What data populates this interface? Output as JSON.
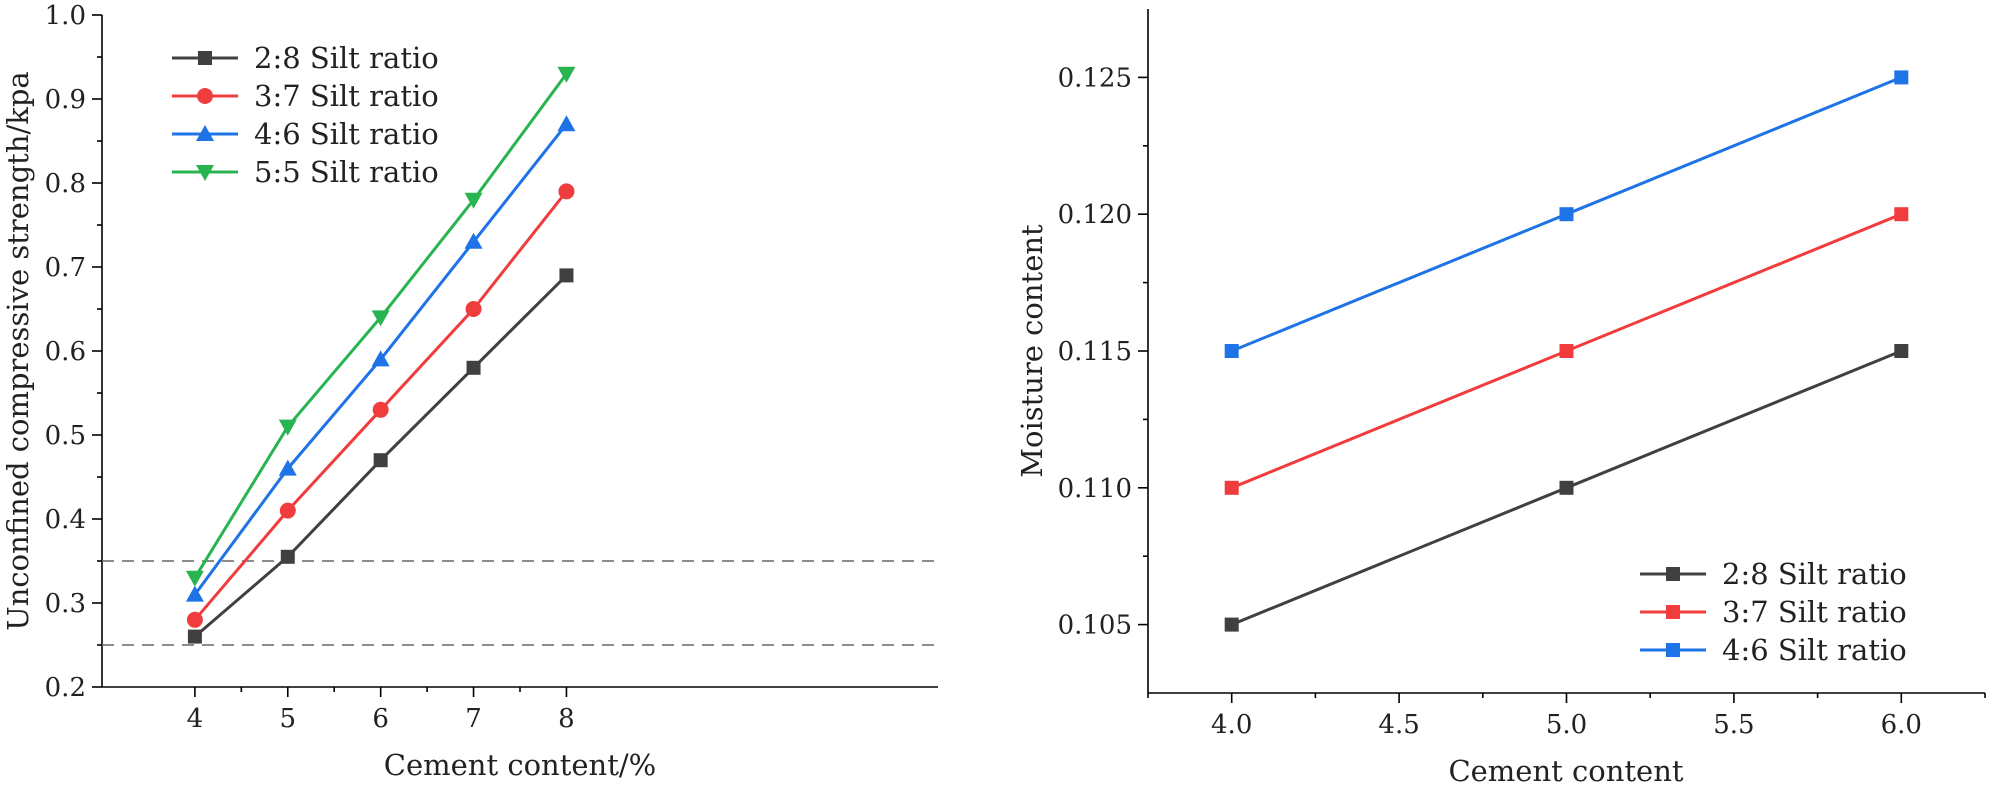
{
  "chart_data": [
    {
      "type": "line",
      "x": [
        4,
        5,
        6,
        7,
        8
      ],
      "xlim": [
        3,
        12
      ],
      "ylim": [
        0.2,
        1.0
      ],
      "xticks": [
        "4",
        "5",
        "6",
        "7",
        "8"
      ],
      "yticks": [
        "0.2",
        "0.3",
        "0.4",
        "0.5",
        "0.6",
        "0.7",
        "0.8",
        "0.9",
        "1.0"
      ],
      "xlabel": "Cement content/%",
      "ylabel": "Unconfined compressive strength/kpa",
      "reference_lines": [
        0.35,
        0.25
      ],
      "legend_position": "top-left",
      "series": [
        {
          "name": "2:8 Silt ratio",
          "values": [
            0.26,
            0.355,
            0.47,
            0.58,
            0.69
          ],
          "color": "#404040",
          "marker": "square"
        },
        {
          "name": "3:7 Silt ratio",
          "values": [
            0.28,
            0.41,
            0.53,
            0.65,
            0.79
          ],
          "color": "#f03c3c",
          "marker": "circle"
        },
        {
          "name": "4:6 Silt ratio",
          "values": [
            0.31,
            0.46,
            0.59,
            0.73,
            0.87
          ],
          "color": "#1e73e6",
          "marker": "triangle-up"
        },
        {
          "name": "5:5 Silt ratio",
          "values": [
            0.33,
            0.51,
            0.64,
            0.78,
            0.93
          ],
          "color": "#28b450",
          "marker": "triangle-down"
        }
      ]
    },
    {
      "type": "line",
      "x": [
        4.0,
        5.0,
        6.0
      ],
      "xlim": [
        3.75,
        6.25
      ],
      "ylim": [
        0.1025,
        0.1275
      ],
      "xticks": [
        "4.0",
        "4.5",
        "5.0",
        "5.5",
        "6.0"
      ],
      "yticks": [
        "0.105",
        "0.110",
        "0.115",
        "0.120",
        "0.125"
      ],
      "xlabel": "Cement content",
      "ylabel": "Moisture content",
      "legend_position": "bottom-right",
      "series": [
        {
          "name": "2:8 Silt ratio",
          "values": [
            0.105,
            0.11,
            0.115
          ],
          "color": "#404040",
          "marker": "square"
        },
        {
          "name": "3:7 Silt ratio",
          "values": [
            0.11,
            0.115,
            0.12
          ],
          "color": "#f03c3c",
          "marker": "square"
        },
        {
          "name": "4:6 Silt ratio",
          "values": [
            0.115,
            0.12,
            0.125
          ],
          "color": "#1e73e6",
          "marker": "square"
        }
      ]
    }
  ]
}
